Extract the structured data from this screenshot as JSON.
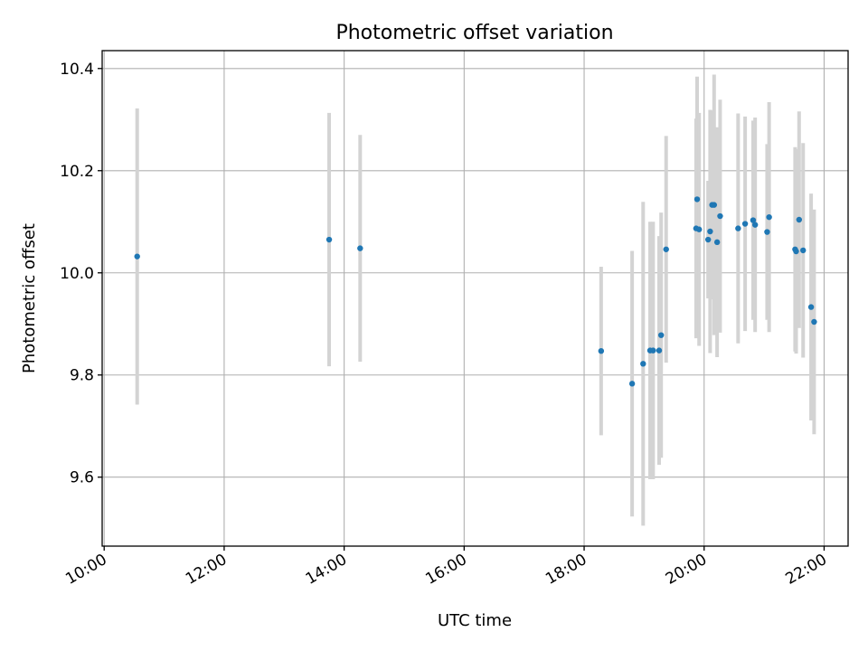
{
  "chart_data": {
    "type": "scatter",
    "title": "Photometric offset variation",
    "xlabel": "UTC time",
    "ylabel": "Photometric offset",
    "x_axis_type": "time",
    "xlim": [
      "09:58",
      "22:24"
    ],
    "ylim": [
      9.465,
      10.435
    ],
    "x_ticks": [
      "10:00",
      "12:00",
      "14:00",
      "16:00",
      "18:00",
      "20:00",
      "22:00"
    ],
    "y_ticks": [
      "9.6",
      "9.8",
      "10.0",
      "10.2",
      "10.4"
    ],
    "grid": true,
    "point_color": "#1f77b4",
    "error_bar_color": "#d3d3d3",
    "series": [
      {
        "points": [
          {
            "x": "10:33",
            "y": 10.032,
            "err": 0.29
          },
          {
            "x": "13:45",
            "y": 10.065,
            "err": 0.248
          },
          {
            "x": "14:16",
            "y": 10.048,
            "err": 0.222
          },
          {
            "x": "18:17",
            "y": 9.847,
            "err": 0.165
          },
          {
            "x": "18:48",
            "y": 9.783,
            "err": 0.26
          },
          {
            "x": "18:59",
            "y": 9.822,
            "err": 0.317
          },
          {
            "x": "19:06",
            "y": 9.848,
            "err": 0.252
          },
          {
            "x": "19:09",
            "y": 9.848,
            "err": 0.252
          },
          {
            "x": "19:15",
            "y": 9.848,
            "err": 0.224
          },
          {
            "x": "19:17",
            "y": 9.878,
            "err": 0.24
          },
          {
            "x": "19:22",
            "y": 10.046,
            "err": 0.222
          },
          {
            "x": "19:52",
            "y": 10.087,
            "err": 0.215
          },
          {
            "x": "19:53",
            "y": 10.144,
            "err": 0.24
          },
          {
            "x": "19:55",
            "y": 10.085,
            "err": 0.228
          },
          {
            "x": "20:04",
            "y": 10.065,
            "err": 0.115
          },
          {
            "x": "20:06",
            "y": 10.081,
            "err": 0.238
          },
          {
            "x": "20:08",
            "y": 10.133,
            "err": 0.185
          },
          {
            "x": "20:10",
            "y": 10.133,
            "err": 0.255
          },
          {
            "x": "20:13",
            "y": 10.06,
            "err": 0.225
          },
          {
            "x": "20:16",
            "y": 10.111,
            "err": 0.228
          },
          {
            "x": "20:34",
            "y": 10.087,
            "err": 0.225
          },
          {
            "x": "20:41",
            "y": 10.096,
            "err": 0.21
          },
          {
            "x": "20:49",
            "y": 10.103,
            "err": 0.195
          },
          {
            "x": "20:51",
            "y": 10.094,
            "err": 0.21
          },
          {
            "x": "21:03",
            "y": 10.08,
            "err": 0.172
          },
          {
            "x": "21:05",
            "y": 10.109,
            "err": 0.225
          },
          {
            "x": "21:31",
            "y": 10.046,
            "err": 0.2
          },
          {
            "x": "21:32",
            "y": 10.042,
            "err": 0.2
          },
          {
            "x": "21:35",
            "y": 10.104,
            "err": 0.212
          },
          {
            "x": "21:39",
            "y": 10.044,
            "err": 0.21
          },
          {
            "x": "21:47",
            "y": 9.933,
            "err": 0.222
          },
          {
            "x": "21:50",
            "y": 9.904,
            "err": 0.22
          }
        ]
      }
    ]
  }
}
